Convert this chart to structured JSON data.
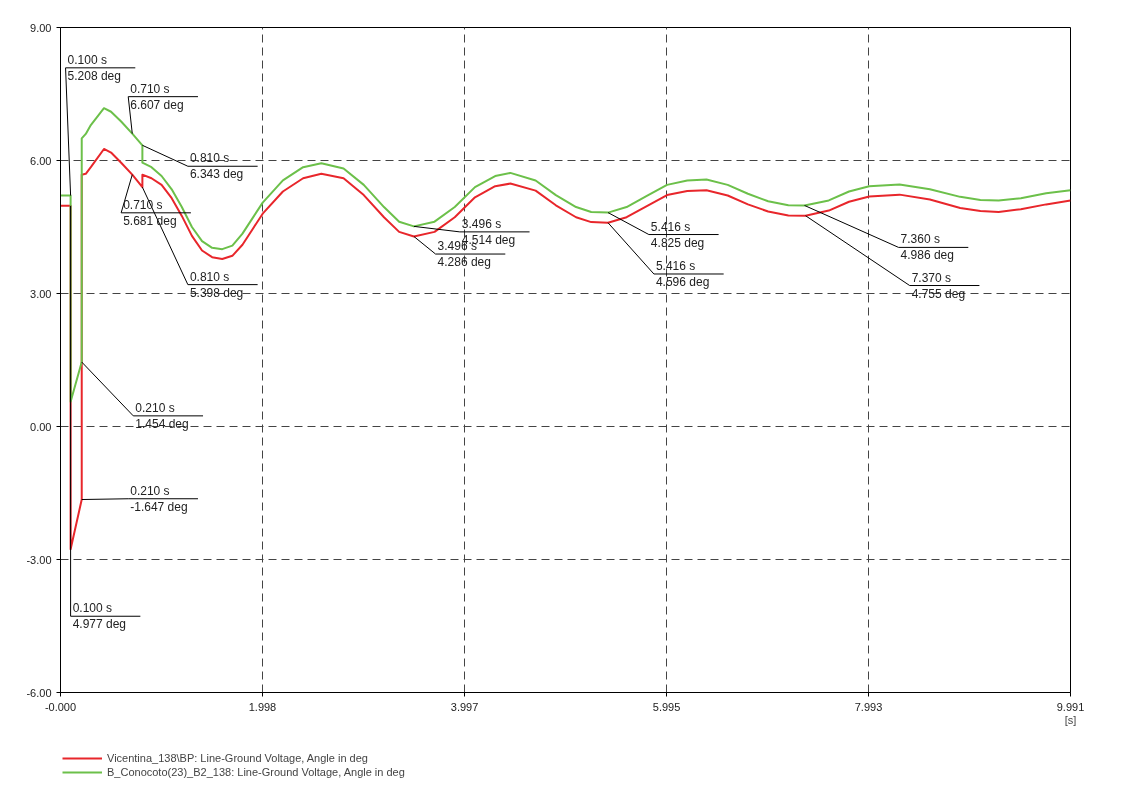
{
  "chart_data": {
    "type": "line",
    "xlabel": "[s]",
    "xlim": [
      0,
      9.991
    ],
    "ylim": [
      -6,
      9
    ],
    "xticks": [
      {
        "value": 0,
        "label": "-0.000"
      },
      1.998,
      3.997,
      5.995,
      7.993,
      9.991
    ],
    "yticks": [
      {
        "value": -6,
        "label": "-6.00"
      },
      {
        "value": -3,
        "label": "-3.00"
      },
      {
        "value": 0,
        "label": "0.00"
      },
      {
        "value": 3,
        "label": "3.00"
      },
      {
        "value": 6,
        "label": "6.00"
      },
      {
        "value": 9,
        "label": "9.00"
      }
    ],
    "grid": true,
    "legend": "bottom",
    "line_style": "solid",
    "marker": "none",
    "series": [
      {
        "name": "Vicentina_138\\BP: Line-Ground Voltage, Angle in deg",
        "color": "#e8262b",
        "x": [
          0,
          0.1,
          0.1,
          0.21,
          0.21,
          0.25,
          0.3,
          0.43,
          0.5,
          0.6,
          0.71,
          0.81,
          0.81,
          0.9,
          1.0,
          1.1,
          1.2,
          1.3,
          1.4,
          1.5,
          1.6,
          1.7,
          1.8,
          1.9,
          2.0,
          2.2,
          2.4,
          2.58,
          2.8,
          3.0,
          3.2,
          3.35,
          3.496,
          3.7,
          3.9,
          4.1,
          4.3,
          4.45,
          4.7,
          4.9,
          5.1,
          5.25,
          5.416,
          5.6,
          5.8,
          6.0,
          6.2,
          6.39,
          6.6,
          6.8,
          7.0,
          7.2,
          7.37,
          7.6,
          7.8,
          8.0,
          8.3,
          8.6,
          8.9,
          9.1,
          9.28,
          9.5,
          9.75,
          9.991
        ],
        "values": [
          4.977,
          4.977,
          -2.77,
          -1.647,
          5.68,
          5.7,
          5.85,
          6.26,
          6.18,
          5.95,
          5.681,
          5.398,
          5.68,
          5.6,
          5.45,
          5.15,
          4.75,
          4.3,
          3.97,
          3.82,
          3.78,
          3.85,
          4.1,
          4.45,
          4.8,
          5.3,
          5.6,
          5.7,
          5.6,
          5.22,
          4.72,
          4.39,
          4.286,
          4.39,
          4.72,
          5.17,
          5.42,
          5.48,
          5.32,
          4.99,
          4.72,
          4.61,
          4.596,
          4.72,
          4.97,
          5.22,
          5.31,
          5.33,
          5.21,
          5.01,
          4.85,
          4.76,
          4.755,
          4.87,
          5.07,
          5.19,
          5.23,
          5.12,
          4.93,
          4.86,
          4.84,
          4.9,
          5.01,
          5.1
        ]
      },
      {
        "name": "B_Conocoto(23)_B2_138: Line-Ground Voltage, Angle in deg",
        "color": "#6cc04a",
        "x": [
          0,
          0.1,
          0.1,
          0.21,
          0.21,
          0.25,
          0.3,
          0.43,
          0.5,
          0.6,
          0.71,
          0.81,
          0.81,
          0.9,
          1.0,
          1.1,
          1.2,
          1.3,
          1.4,
          1.5,
          1.6,
          1.7,
          1.8,
          1.9,
          2.0,
          2.2,
          2.4,
          2.58,
          2.8,
          3.0,
          3.2,
          3.35,
          3.496,
          3.7,
          3.9,
          4.1,
          4.3,
          4.45,
          4.7,
          4.9,
          5.1,
          5.25,
          5.416,
          5.6,
          5.8,
          6.0,
          6.2,
          6.39,
          6.6,
          6.8,
          7.0,
          7.2,
          7.36,
          7.6,
          7.8,
          8.0,
          8.3,
          8.6,
          8.9,
          9.1,
          9.28,
          9.5,
          9.75,
          9.991
        ],
        "values": [
          5.208,
          5.208,
          0.56,
          1.454,
          6.5,
          6.6,
          6.8,
          7.18,
          7.1,
          6.88,
          6.607,
          6.343,
          5.95,
          5.85,
          5.65,
          5.35,
          4.95,
          4.5,
          4.18,
          4.03,
          4.0,
          4.08,
          4.35,
          4.7,
          5.05,
          5.55,
          5.85,
          5.94,
          5.82,
          5.45,
          4.95,
          4.62,
          4.514,
          4.62,
          4.95,
          5.4,
          5.65,
          5.72,
          5.55,
          5.22,
          4.95,
          4.84,
          4.825,
          4.95,
          5.2,
          5.45,
          5.55,
          5.57,
          5.45,
          5.25,
          5.08,
          4.99,
          4.986,
          5.1,
          5.3,
          5.42,
          5.46,
          5.35,
          5.18,
          5.11,
          5.1,
          5.15,
          5.26,
          5.33
        ]
      }
    ],
    "annotations": [
      {
        "text": "0.100 s\n5.208 deg",
        "x": 0.1,
        "y": 5.208
      },
      {
        "text": "0.710 s\n6.607 deg",
        "x": 0.71,
        "y": 6.607
      },
      {
        "text": "0.810 s\n6.343 deg",
        "x": 0.81,
        "y": 6.343
      },
      {
        "text": "0.710 s\n5.681 deg",
        "x": 0.71,
        "y": 5.681
      },
      {
        "text": "0.810 s\n5.398 deg",
        "x": 0.81,
        "y": 5.398
      },
      {
        "text": "0.210 s\n1.454 deg",
        "x": 0.21,
        "y": 1.454
      },
      {
        "text": "0.210 s\n-1.647 deg",
        "x": 0.21,
        "y": -1.647
      },
      {
        "text": "0.100 s\n4.977 deg",
        "x": 0.1,
        "y": 4.977
      },
      {
        "text": "3.496 s\n4.514 deg",
        "x": 3.496,
        "y": 4.514
      },
      {
        "text": "3.496 s\n4.286 deg",
        "x": 3.496,
        "y": 4.286
      },
      {
        "text": "5.416 s\n4.825 deg",
        "x": 5.416,
        "y": 4.825
      },
      {
        "text": "5.416 s\n4.596 deg",
        "x": 5.416,
        "y": 4.596
      },
      {
        "text": "7.360 s\n4.986 deg",
        "x": 7.36,
        "y": 4.986
      },
      {
        "text": "7.370 s\n4.755 deg",
        "x": 7.37,
        "y": 4.755
      }
    ]
  }
}
